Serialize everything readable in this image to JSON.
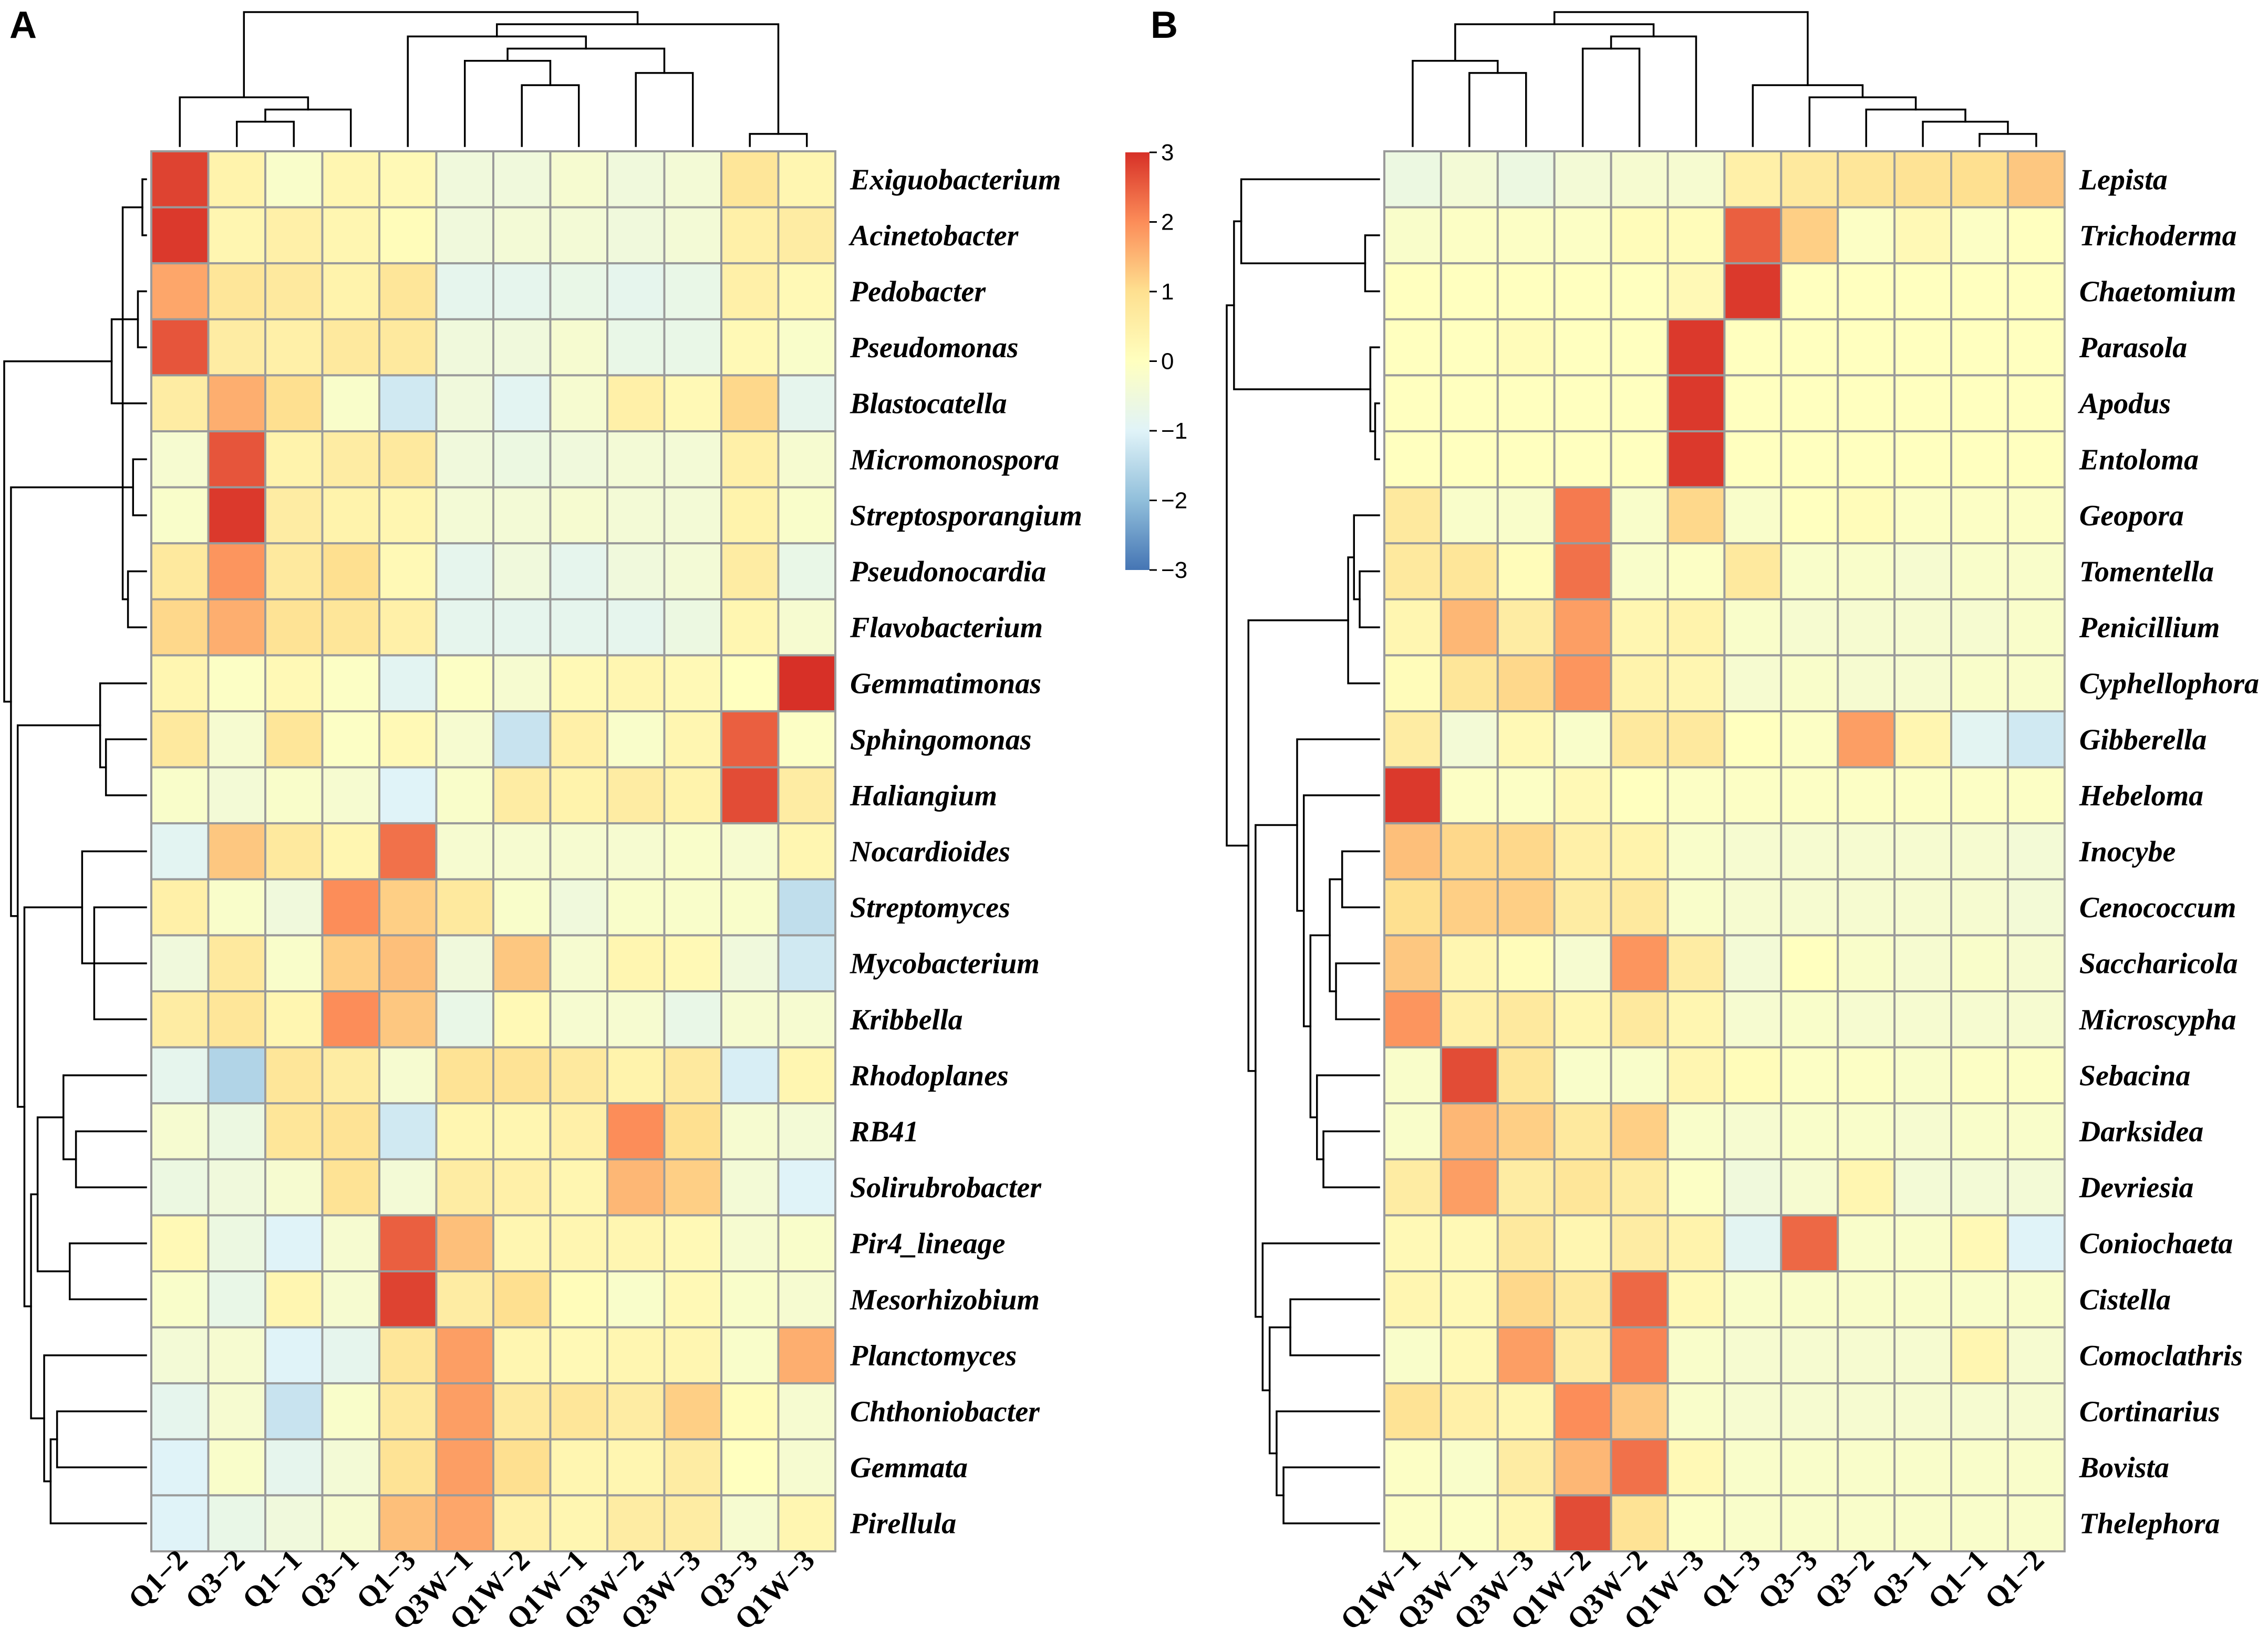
{
  "colors": {
    "scale": [
      "#4575b4",
      "#91bfdb",
      "#e0f3f8",
      "#ffffbf",
      "#fee090",
      "#fc8d59",
      "#d73027"
    ],
    "cell_border": "#9a9a9a"
  },
  "chart_data": [
    {
      "type": "heatmap",
      "panel": "A",
      "title": "",
      "rows": [
        "Exiguobacterium",
        "Acinetobacter",
        "Pedobacter",
        "Pseudomonas",
        "Blastocatella",
        "Micromonospora",
        "Streptosporangium",
        "Pseudonocardia",
        "Flavobacterium",
        "Gemmatimonas",
        "Sphingomonas",
        "Haliangium",
        "Nocardioides",
        "Streptomyces",
        "Mycobacterium",
        "Kribbella",
        "Rhodoplanes",
        "RB41",
        "Solirubrobacter",
        "Pir4_lineage",
        "Mesorhizobium",
        "Planctomyces",
        "Chthoniobacter",
        "Gemmata",
        "Pirellula"
      ],
      "columns": [
        "Q1−2",
        "Q3−2",
        "Q1−1",
        "Q3−1",
        "Q1−3",
        "Q3W−1",
        "Q1W−2",
        "Q1W−1",
        "Q3W−2",
        "Q3W−3",
        "Q3−3",
        "Q1W−3"
      ],
      "values": [
        [
          2.8,
          0.4,
          -0.2,
          0.3,
          0.2,
          -0.5,
          -0.5,
          -0.3,
          -0.5,
          -0.4,
          0.8,
          0.3
        ],
        [
          2.9,
          0.3,
          0.5,
          0.3,
          0.1,
          -0.5,
          -0.4,
          -0.4,
          -0.5,
          -0.4,
          0.5,
          0.6
        ],
        [
          1.7,
          0.8,
          0.7,
          0.4,
          0.8,
          -0.8,
          -0.8,
          -0.7,
          -0.8,
          -0.7,
          0.5,
          0.2
        ],
        [
          2.6,
          0.6,
          0.5,
          0.7,
          0.7,
          -0.5,
          -0.5,
          -0.3,
          -0.7,
          -0.7,
          0.2,
          -0.2
        ],
        [
          0.6,
          1.6,
          1.0,
          -0.2,
          -1.2,
          -0.5,
          -0.9,
          -0.3,
          0.5,
          0.2,
          1.1,
          -0.8
        ],
        [
          -0.3,
          2.6,
          0.4,
          0.6,
          0.7,
          -0.5,
          -0.6,
          -0.5,
          -0.4,
          -0.4,
          0.5,
          -0.3
        ],
        [
          -0.2,
          2.9,
          0.6,
          0.4,
          0.3,
          -0.4,
          -0.4,
          -0.3,
          -0.4,
          -0.4,
          0.4,
          -0.2
        ],
        [
          0.7,
          1.9,
          0.7,
          1.0,
          0.2,
          -0.8,
          -0.5,
          -0.8,
          -0.5,
          -0.4,
          0.6,
          -0.7
        ],
        [
          1.1,
          1.6,
          0.9,
          0.8,
          0.5,
          -0.8,
          -0.8,
          -0.8,
          -0.8,
          -0.6,
          0.3,
          -0.3
        ],
        [
          0.3,
          -0.1,
          0.2,
          -0.1,
          -0.9,
          -0.1,
          -0.3,
          0.2,
          0.3,
          0.2,
          0.0,
          3.0
        ],
        [
          0.7,
          -0.3,
          0.8,
          -0.1,
          0.2,
          -0.3,
          -1.3,
          0.5,
          -0.2,
          0.3,
          2.5,
          -0.1
        ],
        [
          -0.2,
          -0.4,
          -0.2,
          -0.3,
          -1.0,
          -0.2,
          0.6,
          0.4,
          0.6,
          0.4,
          2.7,
          0.6
        ],
        [
          -0.9,
          1.3,
          0.7,
          0.3,
          2.3,
          -0.3,
          -0.3,
          -0.3,
          -0.3,
          -0.2,
          -0.3,
          0.3
        ],
        [
          0.5,
          -0.2,
          -0.5,
          2.0,
          1.2,
          0.7,
          -0.2,
          -0.5,
          -0.2,
          -0.2,
          -0.2,
          -1.4
        ],
        [
          -0.5,
          0.7,
          -0.2,
          1.2,
          1.4,
          -0.5,
          1.3,
          -0.3,
          0.3,
          0.2,
          -0.5,
          -1.2
        ],
        [
          0.6,
          0.8,
          0.3,
          2.0,
          1.3,
          -0.7,
          0.2,
          -0.3,
          -0.3,
          -0.7,
          -0.3,
          -0.3
        ],
        [
          -0.8,
          -1.6,
          0.8,
          0.6,
          -0.3,
          0.9,
          0.9,
          0.7,
          0.4,
          0.7,
          -1.1,
          0.3
        ],
        [
          -0.3,
          -0.6,
          0.8,
          0.9,
          -1.2,
          0.3,
          0.3,
          0.5,
          2.0,
          1.0,
          -0.3,
          -0.4
        ],
        [
          -0.6,
          -0.5,
          -0.3,
          0.9,
          -0.4,
          0.6,
          0.5,
          0.3,
          1.5,
          1.2,
          -0.4,
          -1.0
        ],
        [
          0.2,
          -0.6,
          -1.0,
          -0.3,
          2.5,
          1.4,
          0.3,
          0.3,
          0.3,
          0.2,
          -0.3,
          -0.2
        ],
        [
          -0.2,
          -0.7,
          0.3,
          -0.3,
          2.8,
          0.6,
          1.0,
          0.1,
          -0.2,
          0.2,
          -0.2,
          -0.3
        ],
        [
          -0.4,
          -0.3,
          -1.0,
          -0.8,
          0.8,
          1.8,
          0.3,
          0.2,
          0.3,
          0.3,
          -0.2,
          1.6
        ],
        [
          -0.8,
          -0.3,
          -1.3,
          -0.2,
          0.7,
          1.8,
          0.7,
          0.8,
          0.6,
          1.2,
          0.1,
          -0.3
        ],
        [
          -1.0,
          -0.2,
          -0.8,
          -0.4,
          0.9,
          1.8,
          1.0,
          0.3,
          0.3,
          0.6,
          0.0,
          -0.3
        ],
        [
          -1.0,
          -0.7,
          -0.5,
          -0.3,
          1.4,
          1.7,
          0.5,
          0.3,
          0.6,
          0.6,
          -0.3,
          0.3
        ]
      ],
      "colorbar": {
        "range": [
          -3,
          3
        ],
        "ticks": [
          "3",
          "2",
          "1",
          "0",
          "−1",
          "−2",
          "−3"
        ]
      }
    },
    {
      "type": "heatmap",
      "panel": "B",
      "title": "",
      "rows": [
        "Lepista",
        "Trichoderma",
        "Chaetomium",
        "Parasola",
        "Apodus",
        "Entoloma",
        "Geopora",
        "Tomentella",
        "Penicillium",
        "Cyphellophora",
        "Gibberella",
        "Hebeloma",
        "Inocybe",
        "Cenococcum",
        "Saccharicola",
        "Microscypha",
        "Sebacina",
        "Darksidea",
        "Devriesia",
        "Coniochaeta",
        "Cistella",
        "Comoclathris",
        "Cortinarius",
        "Bovista",
        "Thelephora"
      ],
      "columns": [
        "Q1W−1",
        "Q3W−1",
        "Q3W−3",
        "Q1W−2",
        "Q3W−2",
        "Q1W−3",
        "Q1−3",
        "Q3−3",
        "Q3−2",
        "Q3−1",
        "Q1−1",
        "Q1−2"
      ],
      "values": [
        [
          -0.6,
          -0.4,
          -0.6,
          -0.4,
          -0.3,
          -0.3,
          0.5,
          0.7,
          0.8,
          0.9,
          1.0,
          1.3
        ],
        [
          -0.2,
          -0.1,
          -0.1,
          -0.1,
          0.1,
          0.1,
          2.5,
          1.2,
          -0.1,
          0.2,
          -0.1,
          0.0
        ],
        [
          0.0,
          0.0,
          0.0,
          0.0,
          0.0,
          0.2,
          2.9,
          0.0,
          0.0,
          0.0,
          0.0,
          0.0
        ],
        [
          0.0,
          0.0,
          0.1,
          0.0,
          0.0,
          2.9,
          0.0,
          0.0,
          0.0,
          0.0,
          0.0,
          0.0
        ],
        [
          0.0,
          0.0,
          0.0,
          0.0,
          0.0,
          2.9,
          0.0,
          0.0,
          0.0,
          0.0,
          0.0,
          0.0
        ],
        [
          0.0,
          0.0,
          0.0,
          0.0,
          0.0,
          2.9,
          0.0,
          0.0,
          0.0,
          0.0,
          0.0,
          0.0
        ],
        [
          0.7,
          -0.2,
          -0.2,
          2.2,
          -0.2,
          1.1,
          -0.2,
          0.0,
          0.1,
          -0.1,
          -0.1,
          -0.1
        ],
        [
          0.7,
          0.8,
          0.1,
          2.3,
          -0.2,
          -0.1,
          0.7,
          -0.2,
          -0.2,
          -0.3,
          -0.2,
          -0.2
        ],
        [
          0.3,
          1.5,
          0.6,
          1.8,
          0.3,
          0.4,
          -0.2,
          -0.3,
          -0.3,
          -0.3,
          -0.3,
          -0.2
        ],
        [
          0.1,
          0.8,
          1.1,
          1.9,
          0.4,
          0.3,
          -0.3,
          -0.2,
          -0.3,
          -0.3,
          -0.2,
          -0.2
        ],
        [
          0.6,
          -0.4,
          0.2,
          -0.2,
          0.7,
          0.7,
          0.0,
          -0.1,
          1.8,
          0.3,
          -0.9,
          -1.2
        ],
        [
          2.9,
          -0.1,
          -0.1,
          0.2,
          0.0,
          -0.1,
          -0.1,
          -0.1,
          -0.1,
          -0.1,
          -0.1,
          -0.1
        ],
        [
          1.4,
          1.1,
          1.1,
          0.5,
          0.4,
          -0.2,
          -0.3,
          -0.3,
          -0.3,
          -0.3,
          -0.3,
          -0.4
        ],
        [
          1.0,
          1.2,
          1.2,
          0.6,
          0.7,
          -0.2,
          -0.3,
          -0.3,
          -0.3,
          -0.3,
          -0.3,
          -0.4
        ],
        [
          1.3,
          0.3,
          0.1,
          -0.3,
          1.9,
          0.6,
          -0.4,
          0.0,
          -0.2,
          -0.3,
          -0.2,
          -0.3
        ],
        [
          1.9,
          0.5,
          0.7,
          0.3,
          0.7,
          0.3,
          -0.3,
          -0.2,
          -0.3,
          -0.3,
          -0.3,
          -0.3
        ],
        [
          -0.2,
          2.7,
          0.8,
          -0.2,
          -0.2,
          0.3,
          0.1,
          -0.1,
          -0.1,
          -0.2,
          -0.1,
          -0.1
        ],
        [
          -0.2,
          1.5,
          1.2,
          0.7,
          1.2,
          -0.2,
          -0.3,
          -0.2,
          -0.2,
          -0.3,
          -0.2,
          -0.2
        ],
        [
          0.6,
          1.8,
          0.6,
          0.8,
          0.6,
          -0.1,
          -0.5,
          -0.3,
          0.3,
          -0.4,
          -0.4,
          -0.4
        ],
        [
          0.2,
          0.2,
          0.7,
          0.3,
          0.6,
          0.4,
          -0.9,
          2.4,
          -0.2,
          -0.2,
          0.2,
          -1.0
        ],
        [
          0.3,
          0.2,
          1.1,
          0.7,
          2.4,
          0.2,
          -0.2,
          -0.2,
          -0.2,
          -0.2,
          -0.2,
          -0.2
        ],
        [
          -0.2,
          0.2,
          1.8,
          0.6,
          2.1,
          -0.2,
          -0.3,
          -0.3,
          -0.3,
          -0.3,
          0.3,
          -0.3
        ],
        [
          0.9,
          0.5,
          0.3,
          2.0,
          1.3,
          -0.2,
          -0.3,
          -0.3,
          -0.3,
          -0.3,
          -0.3,
          -0.3
        ],
        [
          -0.1,
          -0.2,
          0.6,
          1.5,
          2.3,
          0.2,
          -0.2,
          -0.2,
          -0.2,
          -0.2,
          -0.2,
          -0.2
        ],
        [
          -0.1,
          -0.1,
          0.3,
          2.7,
          0.9,
          -0.1,
          -0.2,
          -0.2,
          -0.2,
          -0.2,
          -0.2,
          -0.2
        ]
      ]
    }
  ],
  "panels": [
    {
      "label": "A"
    },
    {
      "label": "B"
    }
  ]
}
